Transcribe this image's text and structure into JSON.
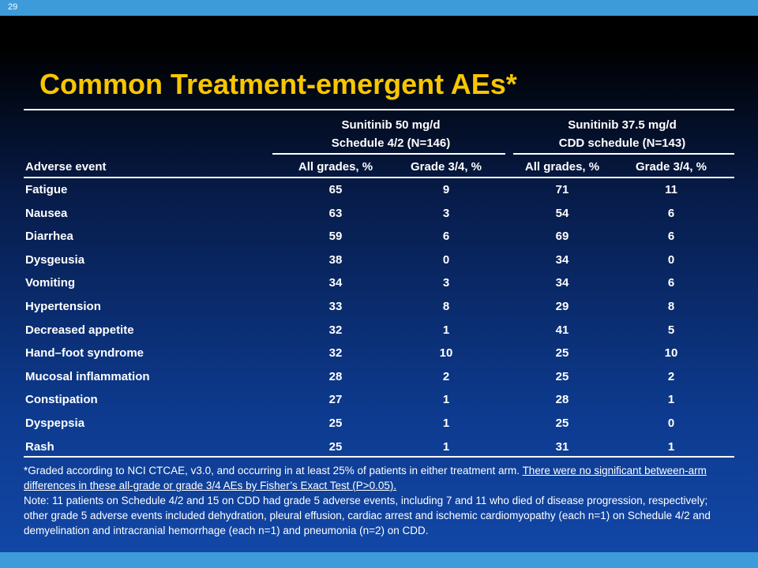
{
  "header": {
    "page_number": "29",
    "title": "Common Treatment-emergent AEs*"
  },
  "table": {
    "group_headers": [
      [
        "Sunitinib 50 mg/d",
        "Schedule 4/2 (N=146)"
      ],
      [
        "Sunitinib 37.5 mg/d",
        "CDD schedule (N=143)"
      ]
    ],
    "columns": [
      "Adverse event",
      "All grades, %",
      "Grade 3/4, %",
      "All grades, %",
      "Grade 3/4, %"
    ],
    "rows": [
      [
        "Fatigue",
        65,
        9,
        71,
        11
      ],
      [
        "Nausea",
        63,
        3,
        54,
        6
      ],
      [
        "Diarrhea",
        59,
        6,
        69,
        6
      ],
      [
        "Dysgeusia",
        38,
        0,
        34,
        0
      ],
      [
        "Vomiting",
        34,
        3,
        34,
        6
      ],
      [
        "Hypertension",
        33,
        8,
        29,
        8
      ],
      [
        "Decreased appetite",
        32,
        1,
        41,
        5
      ],
      [
        "Hand–foot syndrome",
        32,
        10,
        25,
        10
      ],
      [
        "Mucosal inflammation",
        28,
        2,
        25,
        2
      ],
      [
        "Constipation",
        27,
        1,
        28,
        1
      ],
      [
        "Dyspepsia",
        25,
        1,
        25,
        0
      ],
      [
        "Rash",
        25,
        1,
        31,
        1
      ]
    ]
  },
  "footnote": {
    "text": "*Graded according to NCI CTCAE, v3.0, and occurring in at least 25% of patients in either treatment arm. ",
    "underlined": "There were no significant between-arm differences in these all-grade or grade 3/4 AEs by Fisher’s Exact Test (P>0.05).",
    "note": "Note: 11 patients on Schedule 4/2 and 15 on CDD had grade 5 adverse events, including 7 and 11 who died of disease progression, respectively; other grade 5 adverse events included dehydration, pleural effusion, cardiac arrest and ischemic cardiomyopathy (each n=1) on Schedule 4/2 and demyelination and intracranial hemorrhage (each n=1) and pneumonia (n=2) on CDD."
  }
}
